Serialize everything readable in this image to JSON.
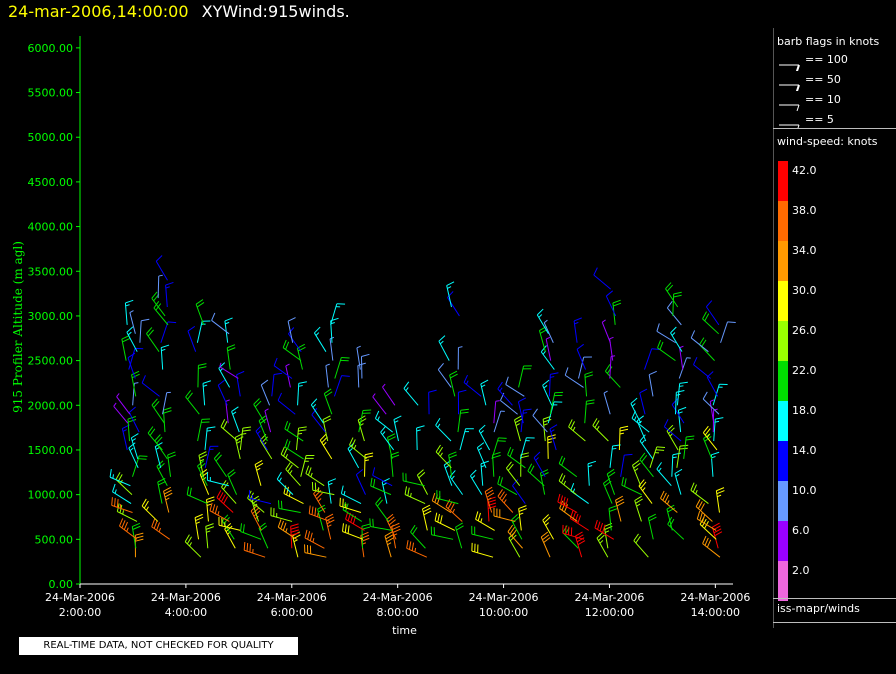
{
  "header": {
    "datetime": "24-mar-2006,14:00:00",
    "title": "XYWind:915winds."
  },
  "chart_data": {
    "type": "scatter",
    "subtype": "wind-barb-profile",
    "title": "XYWind:915winds.",
    "xlabel": "time",
    "ylabel": "915 Profiler Altitude (m agl)",
    "x_ticks": [
      {
        "date": "24-Mar-2006",
        "time": "2:00:00"
      },
      {
        "date": "24-Mar-2006",
        "time": "4:00:00"
      },
      {
        "date": "24-Mar-2006",
        "time": "6:00:00"
      },
      {
        "date": "24-Mar-2006",
        "time": "8:00:00"
      },
      {
        "date": "24-Mar-2006",
        "time": "10:00:00"
      },
      {
        "date": "24-Mar-2006",
        "time": "12:00:00"
      },
      {
        "date": "24-Mar-2006",
        "time": "14:00:00"
      }
    ],
    "xlim": [
      "24-Mar-2006 2:00:00",
      "24-Mar-2006 14:20:00"
    ],
    "y_ticks": [
      "0.00",
      "500.00",
      "1000.00",
      "1500.00",
      "2000.00",
      "2500.00",
      "3000.00",
      "3500.00",
      "4000.00",
      "4500.00",
      "5000.00",
      "5500.00",
      "6000.00"
    ],
    "ylim": [
      0,
      6200
    ],
    "axis_color": "#00ff00",
    "profile_times_hours": [
      3.0,
      3.6,
      4.3,
      4.9,
      5.5,
      6.1,
      6.7,
      7.3,
      7.9,
      8.5,
      9.1,
      9.7,
      10.3,
      10.9,
      11.5,
      12.1,
      12.7,
      13.3,
      14.0
    ],
    "altitude_gates_m": [
      300,
      400,
      500,
      600,
      700,
      800,
      900,
      1000,
      1100,
      1200,
      1300,
      1400,
      1500,
      1600,
      1700,
      1800,
      1900,
      2000,
      2100,
      2200,
      2300,
      2400,
      2500,
      2600,
      2700,
      2800,
      2900,
      3000,
      3100,
      3200,
      3300,
      3400,
      3500
    ]
  },
  "legend": {
    "barb_title": "barb flags in knots",
    "barb_entries": [
      "== 100",
      "== 50",
      "== 10",
      "== 5"
    ],
    "speed_title": "wind-speed: knots",
    "speed_scale": [
      {
        "label": "42.0",
        "color": "#ff0000"
      },
      {
        "label": "38.0",
        "color": "#ff6a00"
      },
      {
        "label": "34.0",
        "color": "#ff9900"
      },
      {
        "label": "30.0",
        "color": "#ffff00"
      },
      {
        "label": "26.0",
        "color": "#99ff00"
      },
      {
        "label": "22.0",
        "color": "#00dd00"
      },
      {
        "label": "18.0",
        "color": "#00ffff"
      },
      {
        "label": "14.0",
        "color": "#0000ff"
      },
      {
        "label": "10.0",
        "color": "#6699ff"
      },
      {
        "label": "6.0",
        "color": "#9900ff"
      },
      {
        "label": "2.0",
        "color": "#ee66dd"
      }
    ],
    "source": "iss-mapr/winds"
  },
  "footer": {
    "qc_note": "REAL-TIME DATA, NOT CHECKED FOR QUALITY"
  }
}
